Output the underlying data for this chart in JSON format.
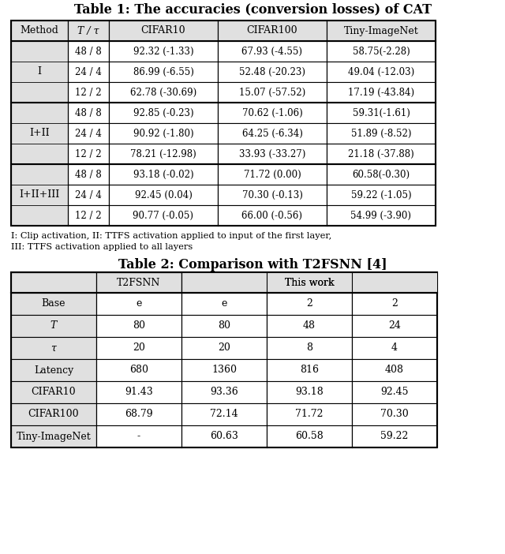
{
  "table1_title": "Table 1: The accuracies (conversion losses) of CAT",
  "table1_headers": [
    "Method",
    "T / τ",
    "CIFAR10",
    "CIFAR100",
    "Tiny-ImageNet"
  ],
  "table1_rows": [
    [
      "I",
      "48 / 8",
      "92.32 (-1.33)",
      "67.93 (-4.55)",
      "58.75(-2.28)"
    ],
    [
      "I",
      "24 / 4",
      "86.99 (-6.55)",
      "52.48 (-20.23)",
      "49.04 (-12.03)"
    ],
    [
      "I",
      "12 / 2",
      "62.78 (-30.69)",
      "15.07 (-57.52)",
      "17.19 (-43.84)"
    ],
    [
      "I+II",
      "48 / 8",
      "92.85 (-0.23)",
      "70.62 (-1.06)",
      "59.31(-1.61)"
    ],
    [
      "I+II",
      "24 / 4",
      "90.92 (-1.80)",
      "64.25 (-6.34)",
      "51.89 (-8.52)"
    ],
    [
      "I+II",
      "12 / 2",
      "78.21 (-12.98)",
      "33.93 (-33.27)",
      "21.18 (-37.88)"
    ],
    [
      "I+II+III",
      "48 / 8",
      "93.18 (-0.02)",
      "71.72 (0.00)",
      "60.58(-0.30)"
    ],
    [
      "I+II+III",
      "24 / 4",
      "92.45 (0.04)",
      "70.30 (-0.13)",
      "59.22 (-1.05)"
    ],
    [
      "I+II+III",
      "12 / 2",
      "90.77 (-0.05)",
      "66.00 (-0.56)",
      "54.99 (-3.90)"
    ]
  ],
  "table1_merged_rows": [
    {
      "label": "I",
      "start": 0,
      "end": 2
    },
    {
      "label": "I+II",
      "start": 3,
      "end": 5
    },
    {
      "label": "I+II+III",
      "start": 6,
      "end": 8
    }
  ],
  "table1_note_line1": "I: Clip activation, II: TTFS activation applied to input of the first layer,",
  "table1_note_line2": "III: TTFS activation applied to all layers",
  "table2_title": "Table 2: Comparison with T2FSNN [4]",
  "table2_rows": [
    [
      "Base",
      "e",
      "e",
      "2",
      "2"
    ],
    [
      "T",
      "80",
      "80",
      "48",
      "24"
    ],
    [
      "τ",
      "20",
      "20",
      "8",
      "4"
    ],
    [
      "Latency",
      "680",
      "1360",
      "816",
      "408"
    ],
    [
      "CIFAR10",
      "91.43",
      "93.36",
      "93.18",
      "92.45"
    ],
    [
      "CIFAR100",
      "68.79",
      "72.14",
      "71.72",
      "70.30"
    ],
    [
      "Tiny-ImageNet",
      "-",
      "60.63",
      "60.58",
      "59.22"
    ]
  ],
  "table2_row_italic": [
    false,
    true,
    true,
    false,
    false,
    false,
    false
  ],
  "cell_bg": "#e0e0e0",
  "white": "#ffffff"
}
